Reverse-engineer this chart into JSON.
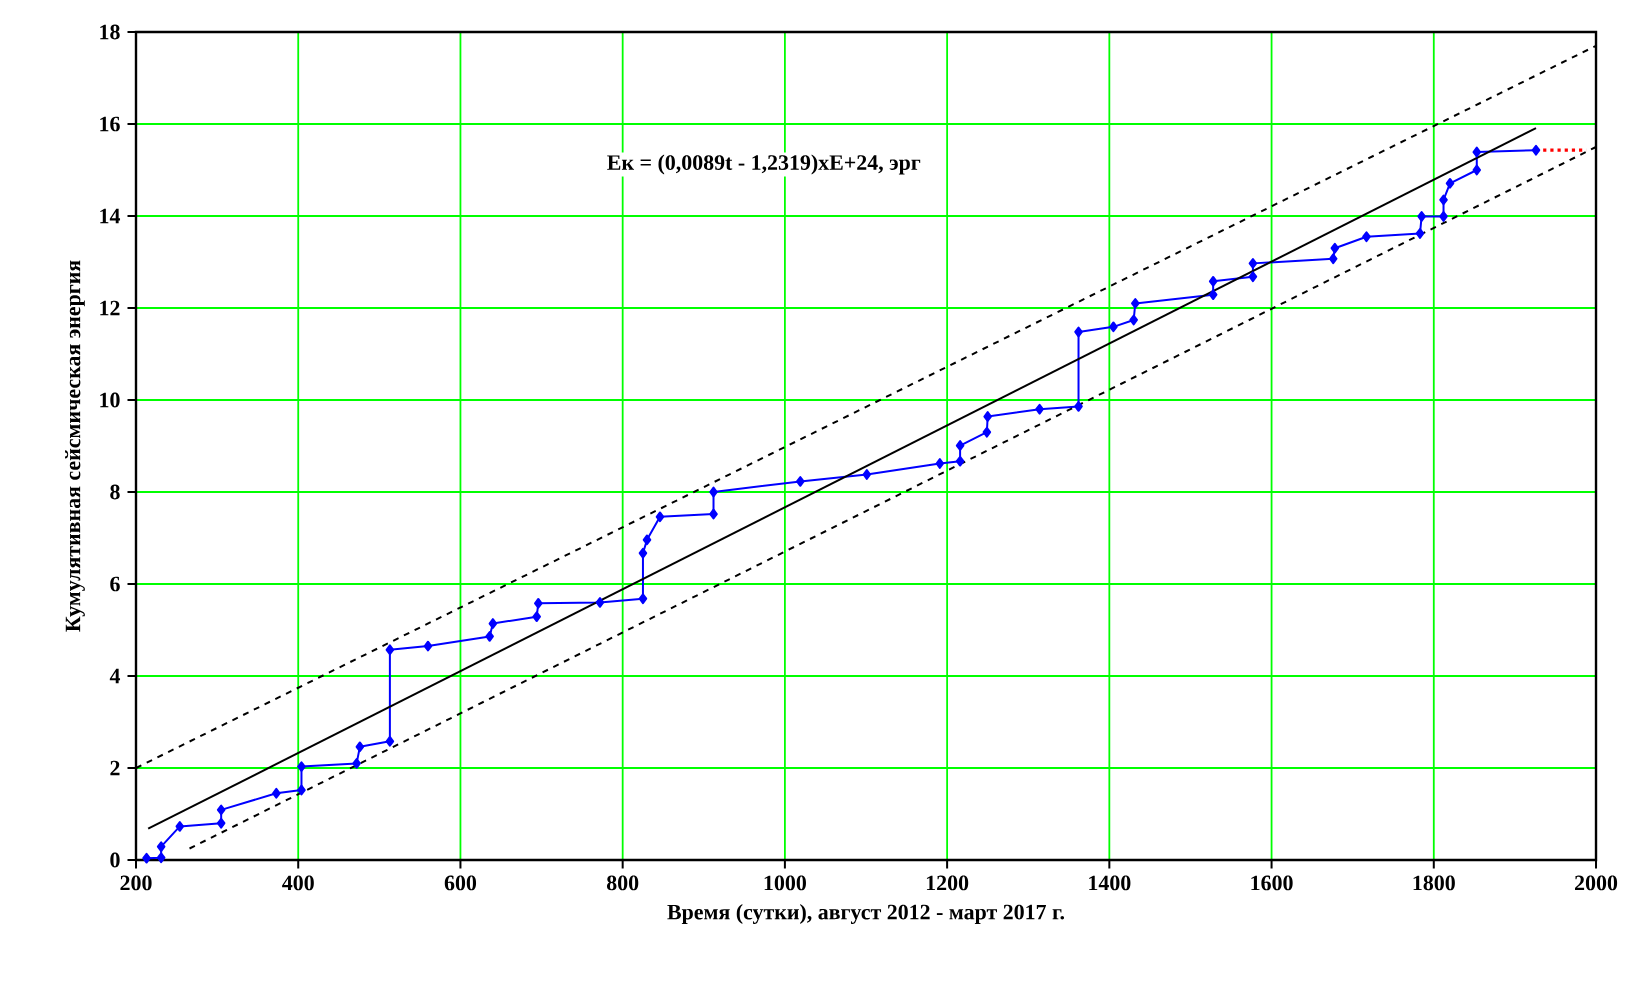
{
  "chart_data": {
    "type": "line",
    "xlabel": "Время (сутки), август 2012 - март 2017 г.",
    "ylabel": "Кумулятивная сейсмическая энергия",
    "annotations": [
      "Eк = (0,0089t - 1,2319)xE+24, эрг"
    ],
    "xlim": [
      200,
      2000
    ],
    "ylim": [
      0,
      18
    ],
    "xticks": [
      200,
      400,
      600,
      800,
      1000,
      1200,
      1400,
      1600,
      1800,
      2000
    ],
    "yticks": [
      0,
      2,
      4,
      6,
      8,
      10,
      12,
      14,
      16,
      18
    ],
    "grid": true,
    "series": [
      {
        "color": "#0000ff",
        "marker": "diamond",
        "line_style": "solid",
        "x": [
          213,
          231,
          231,
          254,
          305,
          305,
          373,
          404,
          404,
          472,
          476,
          513,
          513,
          560,
          636,
          640,
          694,
          696,
          772,
          825,
          825,
          830,
          846,
          912,
          912,
          1019,
          1101,
          1191,
          1216,
          1216,
          1249,
          1250,
          1314,
          1362,
          1362,
          1405,
          1430,
          1432,
          1528,
          1528,
          1577,
          1577,
          1676,
          1678,
          1717,
          1783,
          1785,
          1812,
          1812,
          1820,
          1853,
          1853,
          1926
        ],
        "values": [
          0.04,
          0.05,
          0.29,
          0.73,
          0.8,
          1.09,
          1.45,
          1.52,
          2.03,
          2.1,
          2.46,
          2.58,
          4.57,
          4.65,
          4.86,
          5.14,
          5.29,
          5.58,
          5.6,
          5.68,
          6.67,
          6.96,
          7.46,
          7.52,
          8.0,
          8.23,
          8.38,
          8.62,
          8.67,
          9.01,
          9.3,
          9.64,
          9.8,
          9.86,
          11.48,
          11.59,
          11.74,
          12.1,
          12.29,
          12.58,
          12.68,
          12.97,
          13.07,
          13.3,
          13.55,
          13.62,
          13.99,
          13.99,
          14.35,
          14.71,
          15.0,
          15.39,
          15.43
        ]
      },
      {
        "color": "#000000",
        "marker": "none",
        "line_style": "solid",
        "x": [
          215,
          1926
        ],
        "values": [
          0.68,
          15.91
        ]
      },
      {
        "color": "#000000",
        "marker": "none",
        "line_style": "dashed",
        "x": [
          200,
          2000
        ],
        "values": [
          2.0,
          17.7
        ]
      },
      {
        "color": "#000000",
        "marker": "none",
        "line_style": "dashed",
        "x": [
          266,
          2000
        ],
        "values": [
          0.25,
          15.5
        ]
      },
      {
        "color": "#ff0000",
        "marker": "none",
        "line_style": "dotted",
        "x": [
          1926,
          1988
        ],
        "values": [
          15.43,
          15.43
        ]
      }
    ]
  }
}
